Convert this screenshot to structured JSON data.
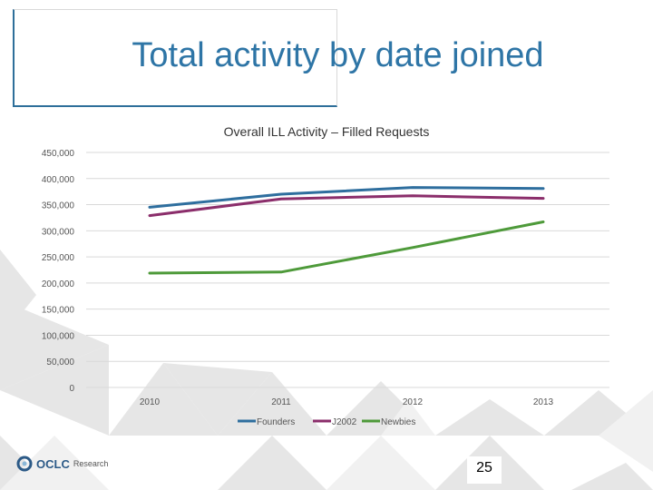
{
  "slide": {
    "title": "Total activity by date joined",
    "page_number": "25",
    "logo_text": "OCLC",
    "logo_sub": "Research"
  },
  "colors": {
    "title": "#2e75a6",
    "founders": "#2e6e9e",
    "j2002": "#8b2e6b",
    "newbies": "#4e9a3a",
    "grid": "#d9d9d9"
  },
  "chart_data": {
    "type": "line",
    "title": "Overall ILL Activity – Filled Requests",
    "xlabel": "",
    "ylabel": "",
    "categories": [
      "2010",
      "2011",
      "2012",
      "2013"
    ],
    "ylim": [
      0,
      450000
    ],
    "yticks": [
      0,
      50000,
      100000,
      150000,
      200000,
      250000,
      300000,
      350000,
      400000,
      450000
    ],
    "ytick_labels": [
      "0",
      "50,000",
      "100,000",
      "150,000",
      "200,000",
      "250,000",
      "300,000",
      "350,000",
      "400,000",
      "450,000"
    ],
    "grid": true,
    "legend_position": "bottom",
    "series": [
      {
        "name": "Founders",
        "values": [
          345000,
          370000,
          383000,
          381000
        ]
      },
      {
        "name": "J2002",
        "values": [
          329000,
          361000,
          367000,
          362000
        ]
      },
      {
        "name": "Newbies",
        "values": [
          219000,
          221000,
          268000,
          317000
        ]
      }
    ]
  }
}
